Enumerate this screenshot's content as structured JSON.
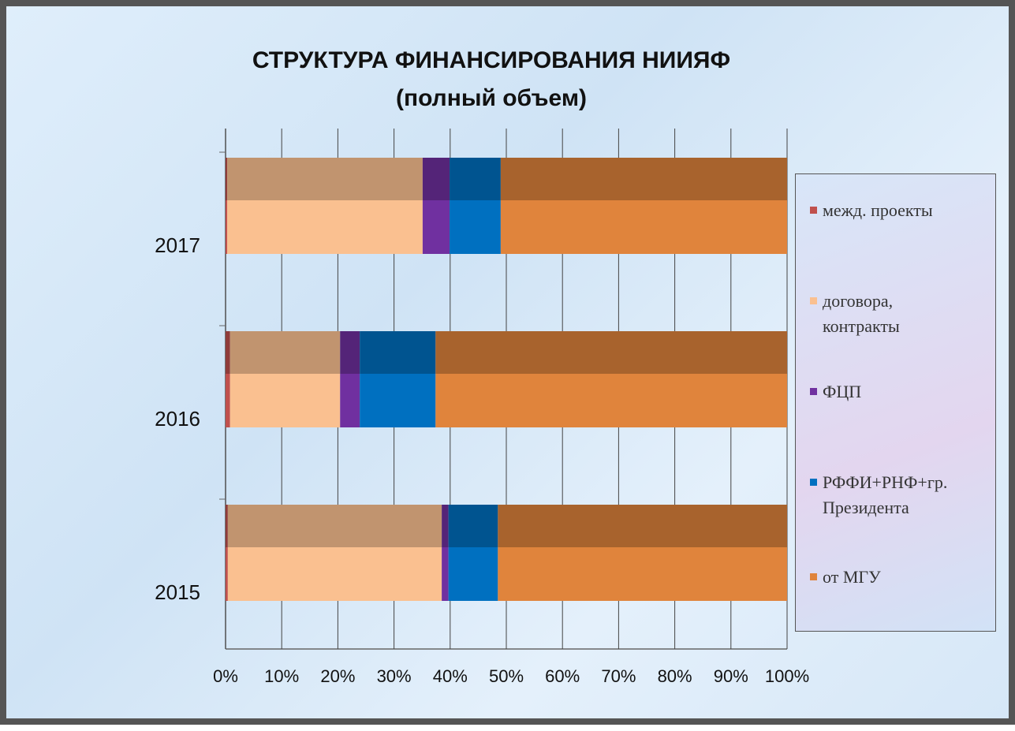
{
  "chart_data": {
    "type": "bar",
    "title": "СТРУКТУРА ФИНАНСИРОВАНИЯ НИИЯФ",
    "subtitle": "(полный объем)",
    "categories": [
      "2015",
      "2016",
      "2017"
    ],
    "series": [
      {
        "name": "межд. проекты",
        "color": "#c0504d",
        "values": [
          0.4,
          0.8,
          0.3
        ]
      },
      {
        "name": "договора, контракты",
        "color": "#fac090",
        "values": [
          38.1,
          19.6,
          34.8
        ]
      },
      {
        "name": "ФЦП",
        "color": "#7030a0",
        "values": [
          1.2,
          3.5,
          4.8
        ]
      },
      {
        "name": "РФФИ+РНФ+гр. Президента",
        "color": "#0070c0",
        "values": [
          8.8,
          13.5,
          9.1
        ]
      },
      {
        "name": "от МГУ",
        "color": "#e0843c",
        "values": [
          51.5,
          62.6,
          51.0
        ]
      }
    ],
    "xlim": [
      0,
      100
    ],
    "xticks": [
      {
        "value": 0,
        "label": "0%"
      },
      {
        "value": 10,
        "label": "10%"
      },
      {
        "value": 20,
        "label": "20%"
      },
      {
        "value": 30,
        "label": "30%"
      },
      {
        "value": 40,
        "label": "40%"
      },
      {
        "value": 50,
        "label": "50%"
      },
      {
        "value": 60,
        "label": "60%"
      },
      {
        "value": 70,
        "label": "70%"
      },
      {
        "value": 80,
        "label": "80%"
      },
      {
        "value": 90,
        "label": "90%"
      },
      {
        "value": 100,
        "label": "100%"
      }
    ],
    "grid": true,
    "stacked": true,
    "orientation": "horizontal",
    "legend": "right"
  }
}
